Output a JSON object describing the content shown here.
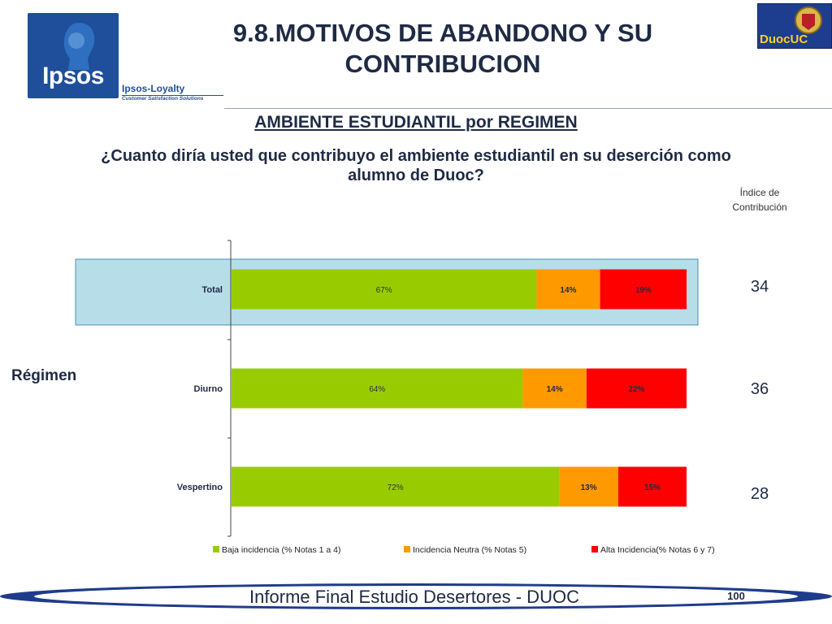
{
  "header": {
    "title_line1": "9.8.MOTIVOS DE ABANDONO Y SU",
    "title_line2": "CONTRIBUCION",
    "subtitle": "AMBIENTE ESTUDIANTIL por REGIMEN",
    "question_line1": "¿Cuanto diría usted que contribuyo el ambiente estudiantil en su deserción como",
    "question_line2": "alumno de Duoc?"
  },
  "logos": {
    "ipsos_brand": "Ipsos",
    "ipsos_loyalty": "Ipsos-Loyalty",
    "ipsos_tagline": "Customer Satisfaction Solutions",
    "duoc_text": "DuocUC"
  },
  "index": {
    "label_line1": "Índice de",
    "label_line2": "Contribución",
    "values": [
      "34",
      "36",
      "28"
    ]
  },
  "side_label": "Régimen",
  "footer": {
    "text": "Informe Final Estudio Desertores - DUOC",
    "page": "100"
  },
  "colors": {
    "baja": "#99cc00",
    "neutra": "#ff9900",
    "alta": "#ff0000",
    "highlight": "#b7dde8",
    "navy": "#1f2a44"
  },
  "chart_data": {
    "type": "bar",
    "orientation": "horizontal",
    "stacked": true,
    "categories": [
      "Total",
      "Diurno",
      "Vespertino"
    ],
    "highlighted_category": "Total",
    "series": [
      {
        "name": "Baja incidencia (% Notas 1 a 4)",
        "values": [
          67,
          64,
          72
        ],
        "labels": [
          "67%",
          "64%",
          "72%"
        ],
        "color": "#99cc00"
      },
      {
        "name": "Incidencia Neutra (% Notas 5)",
        "values": [
          14,
          14,
          13
        ],
        "labels": [
          "14%",
          "14%",
          "13%"
        ],
        "color": "#ff9900"
      },
      {
        "name": "Alta Incidencia(% Notas 6 y 7)",
        "values": [
          19,
          22,
          15
        ],
        "labels": [
          "19%",
          "22%",
          "15%"
        ],
        "color": "#ff0000"
      }
    ],
    "xlim": [
      0,
      100
    ],
    "legend_position": "bottom"
  }
}
